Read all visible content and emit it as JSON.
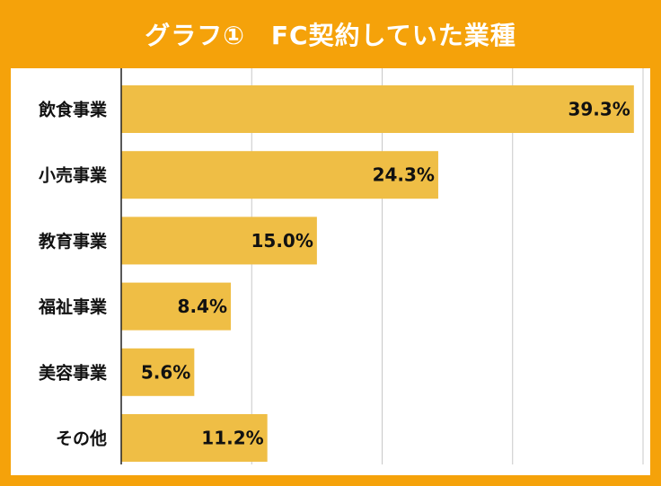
{
  "title": "グラフ①　FC契約していた業種",
  "colors": {
    "frame": "#F5A20A",
    "bar": "#EFBE45",
    "grid": "#C8C8C8",
    "axis": "#222222",
    "title_text": "#FFFFFF"
  },
  "chart_data": {
    "type": "bar",
    "orientation": "horizontal",
    "title": "グラフ①　FC契約していた業種",
    "categories": [
      "飲食事業",
      "小売事業",
      "教育事業",
      "福祉事業",
      "美容事業",
      "その他"
    ],
    "values": [
      39.3,
      24.3,
      15.0,
      8.4,
      5.6,
      11.2
    ],
    "value_labels": [
      "39.3%",
      "24.3%",
      "15.0%",
      "8.4%",
      "5.6%",
      "11.2%"
    ],
    "unit": "%",
    "xlim": [
      0,
      40
    ],
    "gridlines": [
      10,
      20,
      30,
      40
    ],
    "grid": true,
    "legend": "none"
  }
}
